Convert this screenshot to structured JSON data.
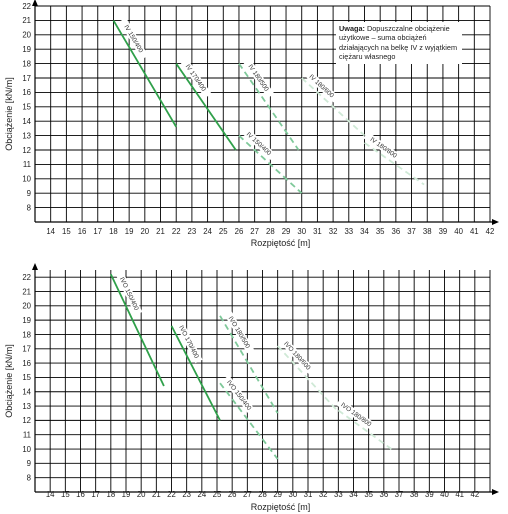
{
  "chart_data": [
    {
      "type": "line",
      "xlabel": "Rozpiętość [m]",
      "ylabel": "Obciążenie [kN/m]",
      "xlim": [
        13,
        42
      ],
      "ylim": [
        7,
        22
      ],
      "x_ticks": [
        14,
        15,
        16,
        17,
        18,
        19,
        20,
        21,
        22,
        23,
        24,
        25,
        26,
        27,
        28,
        29,
        30,
        31,
        32,
        33,
        34,
        35,
        36,
        37,
        38,
        39,
        40,
        41,
        42
      ],
      "y_ticks": [
        8,
        9,
        10,
        11,
        12,
        13,
        14,
        15,
        16,
        17,
        18,
        19,
        20,
        21,
        22
      ],
      "grid": true,
      "note_title": "Uwaga:",
      "note_text": "Dopuszczalne obciążenie użytkowe – suma obciążeń działających na belkę IV z wyjątkiem ciężaru własnego",
      "series": [
        {
          "name": "IV 150/400",
          "style": "solid",
          "color": "#2fa04a",
          "x": [
            18,
            22
          ],
          "y": [
            21,
            13.6
          ]
        },
        {
          "name": "IV 170/400",
          "style": "solid",
          "color": "#2fa04a",
          "x": [
            22,
            25.8
          ],
          "y": [
            18,
            12
          ]
        },
        {
          "name": "IV 180/500",
          "style": "dashed",
          "color": "#7fc99a",
          "x": [
            26,
            29.8
          ],
          "y": [
            18,
            12
          ]
        },
        {
          "name": "IV 150/400",
          "style": "dashed",
          "color": "#7fc99a",
          "x": [
            26,
            30
          ],
          "y": [
            13,
            9
          ]
        },
        {
          "name": "IV 180/600",
          "style": "dashed",
          "color": "#cfe9d6",
          "x": [
            30,
            34
          ],
          "y": [
            17,
            13
          ]
        },
        {
          "name": "IV 180/800",
          "style": "dashed",
          "color": "#cfe9d6",
          "x": [
            34,
            37.8
          ],
          "y": [
            12.5,
            9.6
          ]
        }
      ]
    },
    {
      "type": "line",
      "xlabel": "Rozpiętość [m]",
      "ylabel": "Obciążenie [kN/m]",
      "xlim": [
        13,
        43
      ],
      "ylim": [
        7,
        22.5
      ],
      "x_ticks": [
        14,
        15,
        16,
        17,
        18,
        19,
        20,
        21,
        22,
        23,
        24,
        25,
        26,
        27,
        28,
        29,
        30,
        31,
        32,
        33,
        34,
        35,
        36,
        37,
        38,
        39,
        40,
        41,
        42
      ],
      "y_ticks": [
        8,
        9,
        10,
        11,
        12,
        13,
        14,
        15,
        16,
        17,
        18,
        19,
        20,
        21,
        22
      ],
      "grid": true,
      "series": [
        {
          "name": "IVO 150/400",
          "style": "solid",
          "color": "#2fa04a",
          "x": [
            18,
            21.5
          ],
          "y": [
            22.2,
            14.4
          ]
        },
        {
          "name": "IVO 170/400",
          "style": "solid",
          "color": "#2fa04a",
          "x": [
            22,
            25.2
          ],
          "y": [
            18.6,
            12
          ]
        },
        {
          "name": "IVO 180/500",
          "style": "dashed",
          "color": "#7fc99a",
          "x": [
            25.2,
            29
          ],
          "y": [
            19.3,
            12.5
          ]
        },
        {
          "name": "IVO 150/400",
          "style": "dashed",
          "color": "#7fc99a",
          "x": [
            25.2,
            29
          ],
          "y": [
            14.6,
            9.3
          ]
        },
        {
          "name": "IVO 180/600",
          "style": "dashed",
          "color": "#cfe9d6",
          "x": [
            29,
            33
          ],
          "y": [
            17.2,
            12.6
          ]
        },
        {
          "name": "IVO 180/800",
          "style": "dashed",
          "color": "#cfe9d6",
          "x": [
            33,
            36.5
          ],
          "y": [
            12.7,
            10
          ]
        }
      ]
    }
  ]
}
